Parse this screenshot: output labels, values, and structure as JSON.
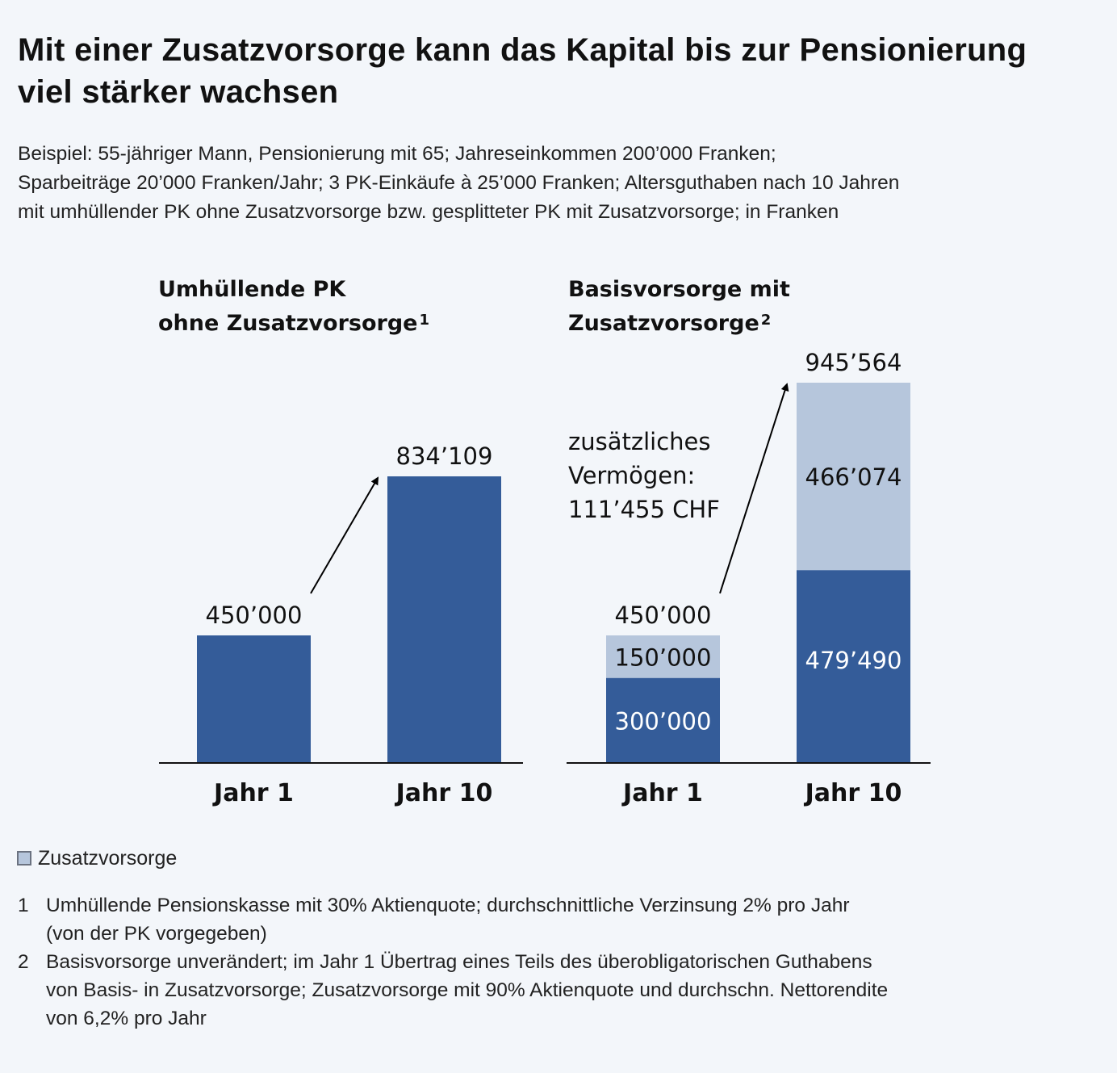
{
  "title": "Mit einer Zusatzvorsorge kann das Kapital bis zur Pensionierung viel stärker wachsen",
  "subtitle_lines": [
    "Beispiel: 55-jähriger Mann, Pensionierung mit 65; Jahreseinkommen 200’000 Franken;",
    "Sparbeiträge 20’000 Franken/Jahr; 3 PK-Einkäufe à 25’000 Franken; Altersguthaben nach 10 Jahren",
    "mit umhüllender PK ohne Zusatzvorsorge bzw. gesplitteter PK mit Zusatzvorsorge; in Franken"
  ],
  "colors": {
    "basis": "#345c99",
    "zusatz": "#b6c6dc",
    "background": "#f3f6fa"
  },
  "chart_data": [
    {
      "type": "bar",
      "title_lines": [
        "Umhüllende PK",
        "ohne Zusatzvorsorge"
      ],
      "title_sup": "1",
      "categories": [
        "Jahr 1",
        "Jahr 10"
      ],
      "series": [
        {
          "name": "PK",
          "values": [
            450000,
            834109
          ],
          "labels": [
            "450’000",
            "834’109"
          ]
        }
      ],
      "total_labels": [
        "450’000",
        "834’109"
      ],
      "xlabel": "",
      "ylabel": "",
      "arrow": "Jahr 1 → Jahr 10"
    },
    {
      "type": "bar",
      "stacked": true,
      "title_lines": [
        "Basisvorsorge mit",
        "Zusatzvorsorge"
      ],
      "title_sup": "2",
      "categories": [
        "Jahr 1",
        "Jahr 10"
      ],
      "series": [
        {
          "name": "Basisvorsorge",
          "values": [
            300000,
            479490
          ],
          "labels": [
            "300’000",
            "479’490"
          ]
        },
        {
          "name": "Zusatzvorsorge",
          "values": [
            150000,
            466074
          ],
          "labels": [
            "150’000",
            "466’074"
          ]
        }
      ],
      "totals": [
        450000,
        945564
      ],
      "total_labels": [
        "450’000",
        "945’564"
      ],
      "annotation_lines": [
        "zusätzliches",
        "Vermögen:",
        "111’455 CHF"
      ],
      "xlabel": "",
      "ylabel": ""
    }
  ],
  "legend": {
    "label": "Zusatzvorsorge"
  },
  "footnotes": [
    {
      "num": "1",
      "lines": [
        "Umhüllende Pensionskasse mit 30% Aktienquote; durchschnittliche Verzinsung 2% pro Jahr",
        "(von der PK vorgegeben)"
      ]
    },
    {
      "num": "2",
      "lines": [
        "Basisvorsorge unverändert; im Jahr 1 Übertrag eines Teils des überobligatorischen Guthabens",
        "von Basis- in Zusatzvorsorge; Zusatzvorsorge mit 90% Aktienquote und durchschn. Nettorendite",
        "von 6,2% pro Jahr"
      ]
    }
  ]
}
